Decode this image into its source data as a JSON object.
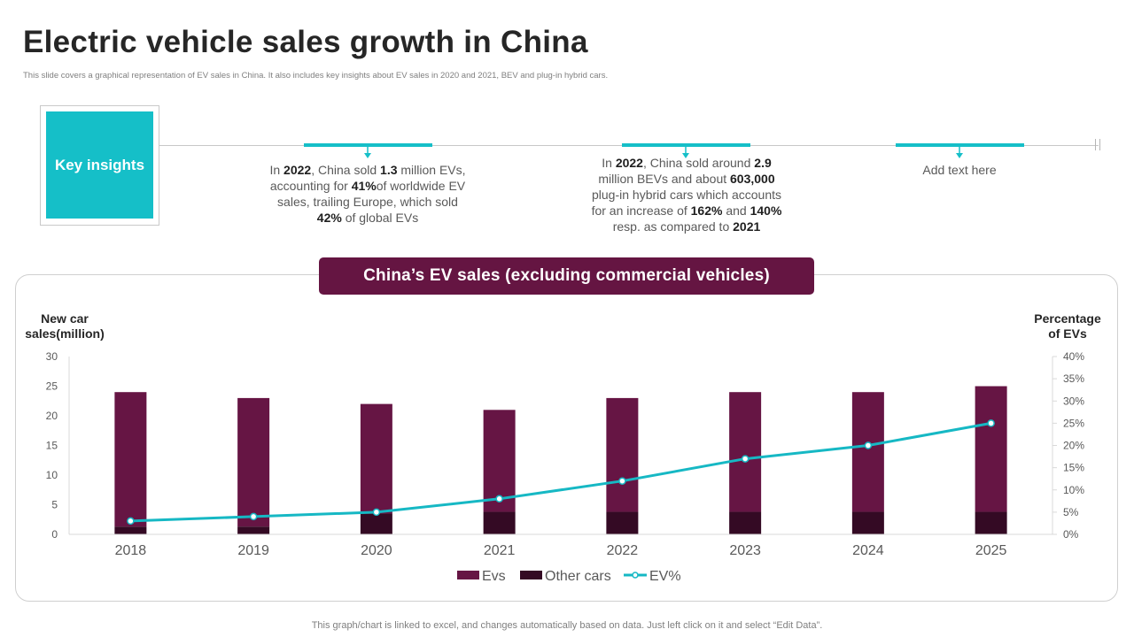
{
  "title": "Electric vehicle sales growth in China",
  "subtitle": "This slide covers a graphical representation of  EV sales in China.  It also includes key insights about EV  sales in 2020 and 2021, BEV and plug-in hybrid cars.",
  "key_insights": {
    "label": "Key insights",
    "items": [
      {
        "lines": [
          [
            "In ",
            "2022",
            ", China sold ",
            "1.3",
            " million EVs,"
          ],
          [
            "accounting for ",
            "41%",
            "of worldwide EV"
          ],
          [
            "sales, trailing  Europe, which sold"
          ],
          [
            "",
            "42%",
            " of global EVs"
          ]
        ]
      },
      {
        "lines": [
          [
            "In ",
            "2022",
            ", China sold around ",
            "2.9"
          ],
          [
            "million BEVs and about ",
            "603,000"
          ],
          [
            "plug-in hybrid cars which accounts"
          ],
          [
            "for an increase of ",
            "162%",
            " and ",
            "140%"
          ],
          [
            "resp. as compared to ",
            "2021"
          ]
        ]
      },
      {
        "lines": [
          [
            "Add text here"
          ]
        ]
      }
    ]
  },
  "banner": "China’s EV sales (excluding commercial  vehicles)",
  "colors": {
    "evs": "#661544",
    "other_cars": "#340a24",
    "ev_pct": "#16b8c4",
    "accent": "#15bfc8",
    "banner": "#651542"
  },
  "chart_data": {
    "type": "bar",
    "stacked": true,
    "title": "China’s EV sales (excluding commercial  vehicles)",
    "ylabel_left": [
      "New car",
      "sales(million)"
    ],
    "ylabel_right": [
      "Percentage",
      "of EVs"
    ],
    "categories": [
      "2018",
      "2019",
      "2020",
      "2021",
      "2022",
      "2023",
      "2024",
      "2025"
    ],
    "ylim_left": [
      0,
      30
    ],
    "yticks_left": [
      0,
      5,
      10,
      15,
      20,
      25,
      30
    ],
    "ylim_right": [
      0,
      40
    ],
    "yticks_right": [
      "0%",
      "5%",
      "10%",
      "15%",
      "20%",
      "25%",
      "30%",
      "35%",
      "40%"
    ],
    "series": [
      {
        "name": "Other cars",
        "type": "bar",
        "axis": "left",
        "values": [
          1.3,
          1.3,
          3.5,
          3.8,
          3.8,
          3.8,
          3.8,
          3.8
        ]
      },
      {
        "name": "Evs",
        "type": "bar",
        "axis": "left",
        "values": [
          22.7,
          21.7,
          18.5,
          17.2,
          19.2,
          20.2,
          20.2,
          21.2
        ]
      },
      {
        "name": "EV%",
        "type": "line",
        "axis": "right",
        "values": [
          3,
          4,
          5,
          8,
          12,
          17,
          20,
          25
        ]
      }
    ],
    "legend": [
      "Evs",
      "Other cars",
      "EV%"
    ],
    "legend_position": "bottom"
  },
  "footer": "This graph/chart is linked to excel,  and changes automatically based on data. Just left click on it and select “Edit Data”."
}
